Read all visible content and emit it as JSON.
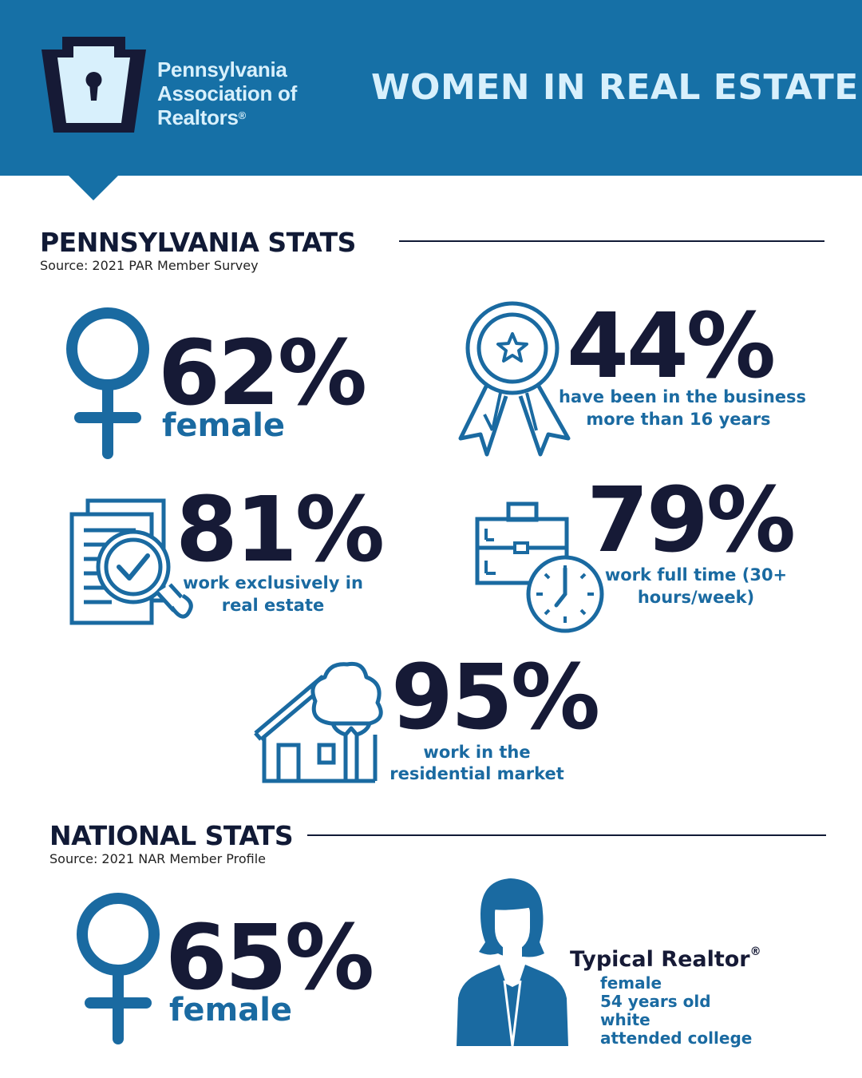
{
  "header": {
    "logo_lines": [
      "Pennsylvania",
      "Association of",
      "Realtors"
    ],
    "logo_mark": "®",
    "title": "WOMEN IN REAL ESTATE"
  },
  "pa_section": {
    "title": "PENNSYLVANIA STATS",
    "source": "Source: 2021 PAR Member Survey",
    "stats": [
      {
        "value": "62%",
        "caption": [
          "female"
        ],
        "icon": "female-symbol-icon"
      },
      {
        "value": "44%",
        "caption": [
          "have been in the business",
          "more than 16 years"
        ],
        "icon": "award-ribbon-icon"
      },
      {
        "value": "81%",
        "caption": [
          "work exclusively in",
          "real estate"
        ],
        "icon": "document-search-icon"
      },
      {
        "value": "79%",
        "caption": [
          "work full time (30+",
          "hours/week)"
        ],
        "icon": "briefcase-clock-icon"
      },
      {
        "value": "95%",
        "caption": [
          "work in the",
          "residential market"
        ],
        "icon": "house-tree-icon"
      }
    ]
  },
  "national_section": {
    "title": "NATIONAL STATS",
    "source": "Source: 2021 NAR Member Profile",
    "stat": {
      "value": "65%",
      "caption": "female",
      "icon": "female-symbol-icon"
    },
    "typical": {
      "title": "Typical Realtor",
      "mark": "®",
      "lines": [
        "female",
        "54 years old",
        "white",
        "attended college"
      ],
      "icon": "woman-avatar-icon"
    }
  },
  "colors": {
    "header_blue": "#1670a6",
    "icon_blue": "#1a6aa1",
    "navy": "#161a36",
    "light_blue": "#d8f0fc"
  }
}
